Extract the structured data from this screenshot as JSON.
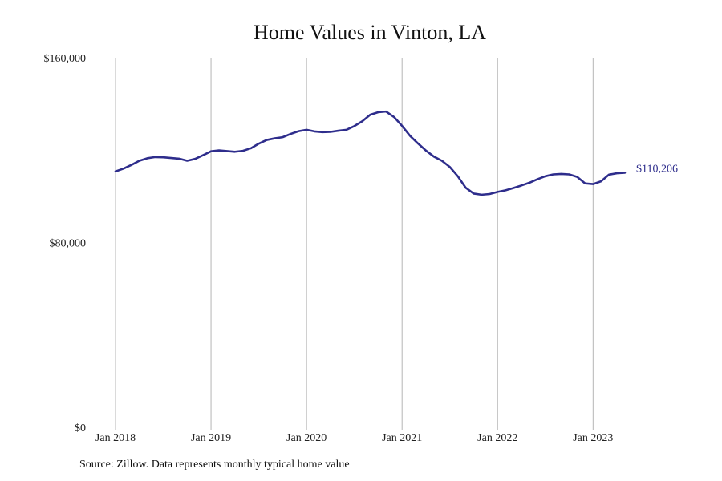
{
  "chart_data": {
    "type": "line",
    "title": "Home Values in Vinton, LA",
    "xlabel": "",
    "ylabel": "",
    "ylim": [
      0,
      160000
    ],
    "y_ticks": [
      "$0",
      "$80,000",
      "$160,000"
    ],
    "y_tick_values": [
      0,
      80000,
      160000
    ],
    "x_ticks": [
      "Jan 2018",
      "Jan 2019",
      "Jan 2020",
      "Jan 2021",
      "Jan 2022",
      "Jan 2023"
    ],
    "grid": "vertical",
    "series": [
      {
        "color": "#2e2d8c",
        "x": [
          "2018-01",
          "2018-02",
          "2018-03",
          "2018-04",
          "2018-05",
          "2018-06",
          "2018-07",
          "2018-08",
          "2018-09",
          "2018-10",
          "2018-11",
          "2018-12",
          "2019-01",
          "2019-02",
          "2019-03",
          "2019-04",
          "2019-05",
          "2019-06",
          "2019-07",
          "2019-08",
          "2019-09",
          "2019-10",
          "2019-11",
          "2019-12",
          "2020-01",
          "2020-02",
          "2020-03",
          "2020-04",
          "2020-05",
          "2020-06",
          "2020-07",
          "2020-08",
          "2020-09",
          "2020-10",
          "2020-11",
          "2020-12",
          "2021-01",
          "2021-02",
          "2021-03",
          "2021-04",
          "2021-05",
          "2021-06",
          "2021-07",
          "2021-08",
          "2021-09",
          "2021-10",
          "2021-11",
          "2021-12",
          "2022-01",
          "2022-02",
          "2022-03",
          "2022-04",
          "2022-05",
          "2022-06",
          "2022-07",
          "2022-08",
          "2022-09",
          "2022-10",
          "2022-11",
          "2022-12",
          "2023-01",
          "2023-02",
          "2023-03",
          "2023-04",
          "2023-05"
        ],
        "values": [
          110800,
          112000,
          113600,
          115400,
          116500,
          117000,
          116900,
          116600,
          116300,
          115400,
          116200,
          117800,
          119500,
          119900,
          119600,
          119300,
          119700,
          120800,
          122800,
          124400,
          125100,
          125600,
          127000,
          128200,
          128800,
          128100,
          127800,
          127900,
          128400,
          128800,
          130400,
          132500,
          135300,
          136400,
          136700,
          134300,
          130500,
          126200,
          122900,
          119800,
          117200,
          115400,
          112700,
          108700,
          103700,
          101200,
          100700,
          101000,
          101900,
          102600,
          103600,
          104700,
          105900,
          107400,
          108700,
          109500,
          109700,
          109500,
          108400,
          105600,
          105300,
          106500,
          109400,
          110000,
          110206
        ]
      }
    ],
    "end_label": "$110,206",
    "source": "Source: Zillow. Data represents monthly typical home value"
  }
}
